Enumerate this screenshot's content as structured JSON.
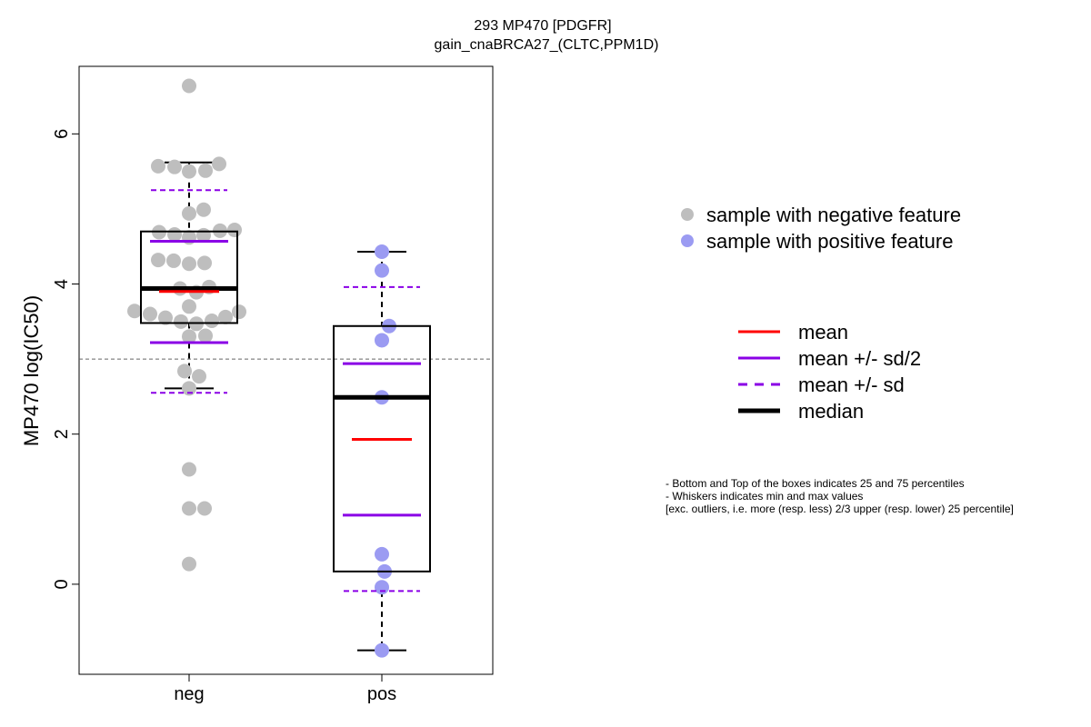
{
  "chart_data": {
    "type": "box",
    "title": "293 MP470 [PDGFR]",
    "subtitle": "gain_cnaBRCA27_(CLTC,PPM1D)",
    "ylabel": "MP470 log(IC50)",
    "xlabel": "",
    "categories": [
      "neg",
      "pos"
    ],
    "ylim": [
      -1.2,
      6.9
    ],
    "yticks": [
      0,
      2,
      4,
      6
    ],
    "reference_line": 3.0,
    "groups": [
      {
        "name": "neg",
        "color": "#bebebe",
        "points": [
          6.64,
          5.57,
          5.56,
          5.5,
          5.51,
          5.6,
          4.94,
          4.99,
          4.69,
          4.66,
          4.62,
          4.65,
          4.71,
          4.72,
          4.32,
          4.31,
          4.27,
          4.28,
          3.94,
          3.96,
          3.89,
          3.7,
          3.64,
          3.6,
          3.55,
          3.5,
          3.47,
          3.51,
          3.56,
          3.63,
          3.3,
          3.31,
          2.84,
          2.77,
          2.61,
          1.53,
          1.01,
          1.01,
          0.27
        ],
        "box": {
          "q1": 3.48,
          "median": 3.94,
          "q3": 4.7,
          "whisker_low": 2.61,
          "whisker_high": 5.62
        },
        "mean": 3.9,
        "mean_minus_half_sd": 3.22,
        "mean_plus_half_sd": 4.57,
        "mean_minus_sd": 2.55,
        "mean_plus_sd": 5.25
      },
      {
        "name": "pos",
        "color": "#9b9bf2",
        "points": [
          4.43,
          4.18,
          3.44,
          3.25,
          2.49,
          0.4,
          0.17,
          -0.04,
          -0.88
        ],
        "box": {
          "q1": 0.17,
          "median": 2.49,
          "q3": 3.44,
          "whisker_low": -0.88,
          "whisker_high": 4.43
        },
        "mean": 1.93,
        "mean_minus_half_sd": 0.92,
        "mean_plus_half_sd": 2.94,
        "mean_minus_sd": -0.09,
        "mean_plus_sd": 3.96
      }
    ],
    "legend_points": [
      {
        "label": "sample with negative feature",
        "color": "#bebebe"
      },
      {
        "label": "sample with positive feature",
        "color": "#9b9bf2"
      }
    ],
    "legend_lines": [
      {
        "label": "mean",
        "color": "#ff0000",
        "style": "solid"
      },
      {
        "label": "mean +/- sd/2",
        "color": "#8a00e6",
        "style": "solid"
      },
      {
        "label": "mean +/- sd",
        "color": "#8a00e6",
        "style": "dashed"
      },
      {
        "label": "median",
        "color": "#000000",
        "style": "thick"
      }
    ],
    "notes": [
      "- Bottom and Top of the boxes indicates 25 and 75 percentiles",
      "- Whiskers indicates min and max values",
      "[exc. outliers, i.e. more (resp. less) 2/3 upper (resp. lower) 25 percentile]"
    ]
  }
}
